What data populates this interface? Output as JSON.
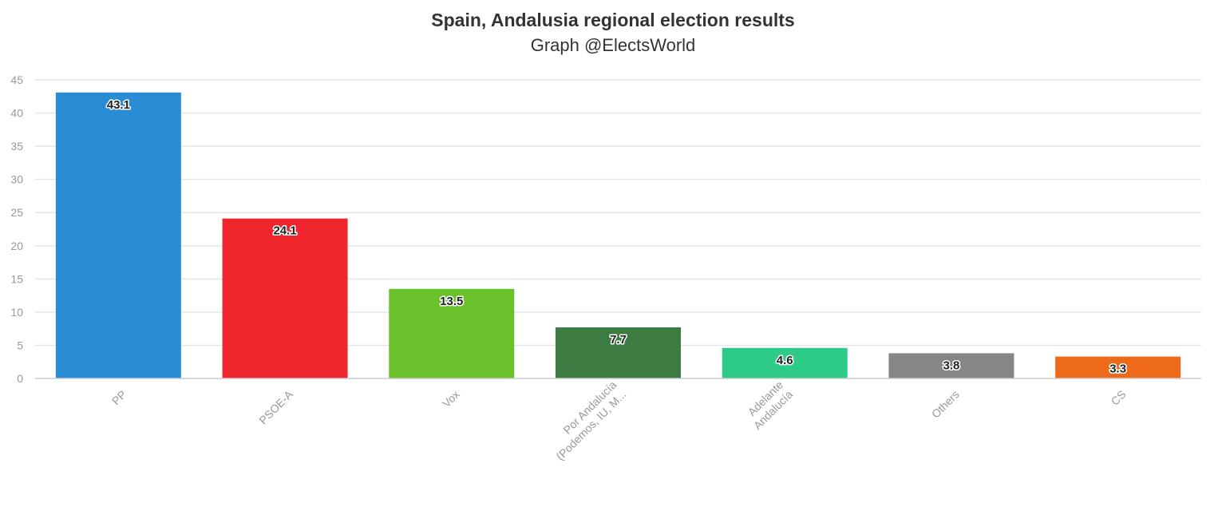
{
  "chart_data": {
    "type": "bar",
    "title": "Spain, Andalusia regional election results",
    "subtitle": "Graph @ElectsWorld",
    "xlabel": "",
    "ylabel": "",
    "ylim": [
      0,
      45
    ],
    "yticks": [
      0,
      5,
      10,
      15,
      20,
      25,
      30,
      35,
      40,
      45
    ],
    "grid": true,
    "legend": "none",
    "categories": [
      "PP",
      "PSOE-A",
      "Vox",
      "Por Andalucía (Podemos, IU, M...",
      "Adelante Andalucía",
      "Others",
      "CS"
    ],
    "category_lines": [
      [
        "PP"
      ],
      [
        "PSOE-A"
      ],
      [
        "Vox"
      ],
      [
        "Por Andalucía",
        "(Podemos, IU, M..."
      ],
      [
        "Adelante",
        "Andalucía"
      ],
      [
        "Others"
      ],
      [
        "CS"
      ]
    ],
    "values": [
      43.1,
      24.1,
      13.5,
      7.7,
      4.6,
      3.8,
      3.3
    ],
    "value_labels": [
      "43.1",
      "24.1",
      "13.5",
      "7.7",
      "4.6",
      "3.8",
      "3.3"
    ],
    "colors": [
      "#2b8cd6",
      "#f0262f",
      "#6bc12b",
      "#3c7b41",
      "#2dcc86",
      "#868686",
      "#ed6a1a"
    ]
  }
}
